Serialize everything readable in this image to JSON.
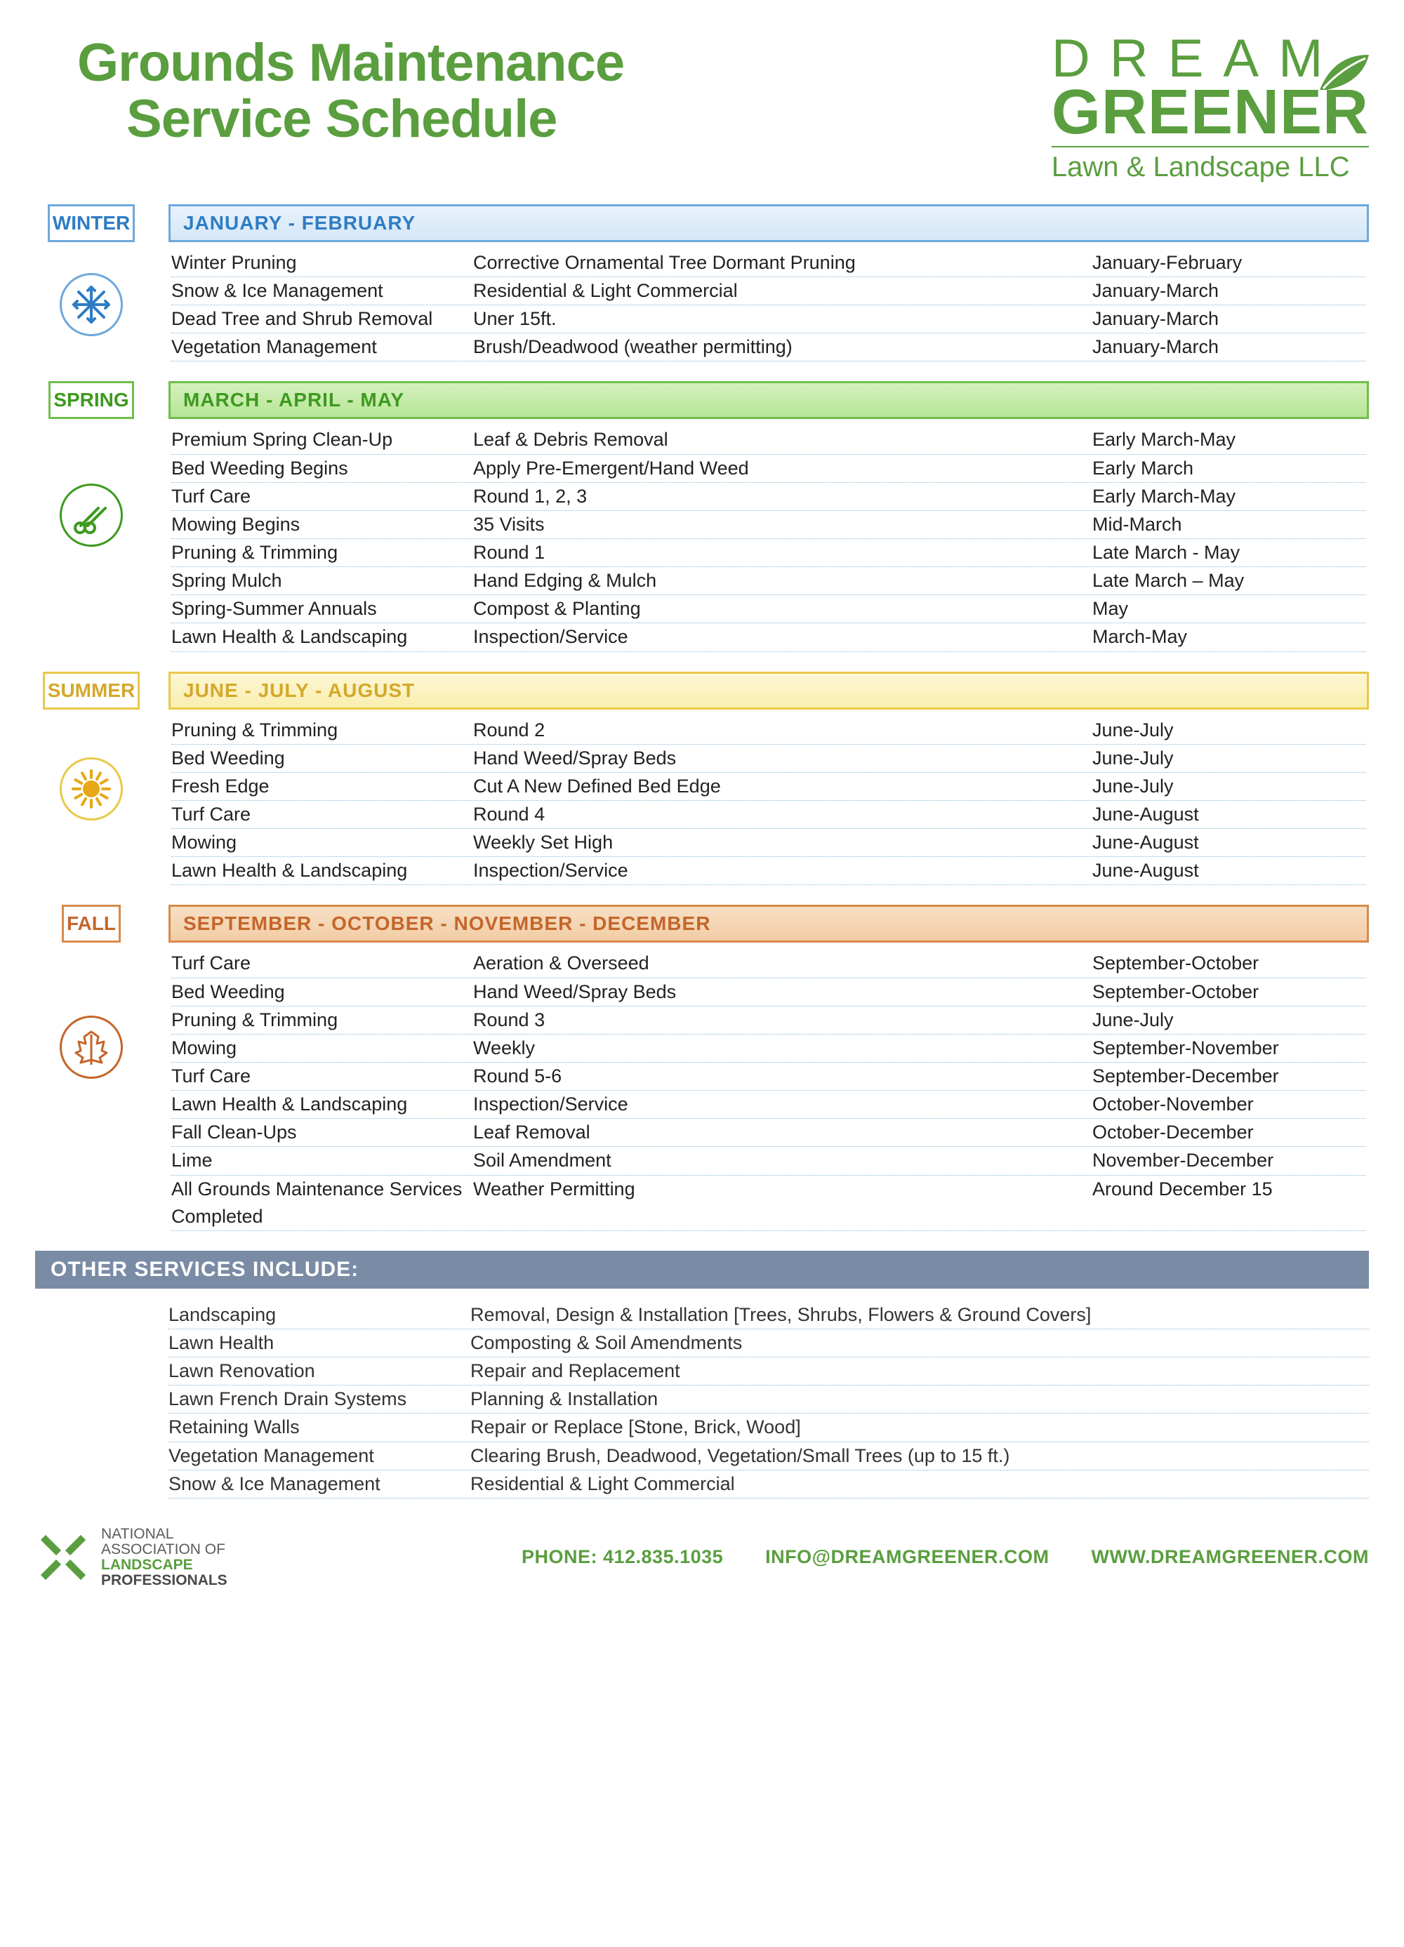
{
  "title_line1": "Grounds Maintenance",
  "title_line2": "Service Schedule",
  "logo": {
    "line1": "DREAM",
    "line2": "GREENER",
    "sub": "Lawn & Landscape LLC"
  },
  "colors": {
    "brand_green": "#5a9e3f",
    "winter": "#2e7cc4",
    "spring": "#3d9a1f",
    "summer": "#d4a82a",
    "fall": "#c4662a",
    "other_bar": "#7a8ba5",
    "row_rule": "#8fb8d6"
  },
  "seasons": [
    {
      "key": "winter",
      "label": "WINTER",
      "months": "JANUARY  -  FEBRUARY",
      "icon": "snowflake",
      "rows": [
        {
          "s": "Winter Pruning",
          "d": "Corrective Ornamental Tree Dormant Pruning",
          "t": "January-February"
        },
        {
          "s": "Snow & Ice Management",
          "d": "Residential & Light Commercial",
          "t": "January-March"
        },
        {
          "s": "Dead Tree and Shrub Removal",
          "d": "Uner 15ft.",
          "t": "January-March"
        },
        {
          "s": "Vegetation Management",
          "d": "Brush/Deadwood (weather permitting)",
          "t": "January-March"
        }
      ]
    },
    {
      "key": "spring",
      "label": "SPRING",
      "months": "MARCH  -  APRIL  -  MAY",
      "icon": "shears",
      "rows": [
        {
          "s": "Premium Spring Clean-Up",
          "d": "Leaf & Debris Removal",
          "t": "Early March-May"
        },
        {
          "s": "Bed Weeding Begins",
          "d": "Apply Pre-Emergent/Hand Weed",
          "t": "Early March"
        },
        {
          "s": "Turf Care",
          "d": "Round 1, 2, 3",
          "t": "Early March-May"
        },
        {
          "s": "Mowing Begins",
          "d": "35 Visits",
          "t": "Mid-March"
        },
        {
          "s": "Pruning & Trimming",
          "d": "Round 1",
          "t": "Late March - May"
        },
        {
          "s": "Spring Mulch",
          "d": "Hand Edging & Mulch",
          "t": "Late March – May"
        },
        {
          "s": "Spring-Summer Annuals",
          "d": "Compost & Planting",
          "t": "May"
        },
        {
          "s": "Lawn Health & Landscaping",
          "d": "Inspection/Service",
          "t": "March-May"
        }
      ]
    },
    {
      "key": "summer",
      "label": "SUMMER",
      "months": "JUNE  -  JULY  -  AUGUST",
      "icon": "sun",
      "rows": [
        {
          "s": "Pruning & Trimming",
          "d": "Round 2",
          "t": " June-July"
        },
        {
          "s": "Bed Weeding",
          "d": "Hand Weed/Spray Beds",
          "t": "June-July"
        },
        {
          "s": "Fresh Edge",
          "d": "Cut A New Defined Bed Edge",
          "t": "June-July"
        },
        {
          "s": "Turf Care",
          "d": "Round 4",
          "t": "June-August"
        },
        {
          "s": "Mowing",
          "d": "Weekly Set High",
          "t": "June-August"
        },
        {
          "s": "Lawn Health & Landscaping",
          "d": "Inspection/Service",
          "t": "June-August"
        }
      ]
    },
    {
      "key": "fall",
      "label": "FALL",
      "months": "SEPTEMBER  -  OCTOBER  -  NOVEMBER  -  DECEMBER",
      "icon": "leaf",
      "rows": [
        {
          "s": "Turf Care",
          "d": "Aeration & Overseed",
          "t": "September-October"
        },
        {
          "s": "Bed Weeding",
          "d": "Hand Weed/Spray Beds",
          "t": "September-October"
        },
        {
          "s": "Pruning & Trimming",
          "d": "Round 3",
          "t": "June-July"
        },
        {
          "s": "Mowing",
          "d": "Weekly",
          "t": "September-November"
        },
        {
          "s": "Turf Care",
          "d": "Round 5-6",
          "t": "September-December"
        },
        {
          "s": "Lawn Health & Landscaping",
          "d": "Inspection/Service",
          "t": "October-November"
        },
        {
          "s": "Fall Clean-Ups",
          "d": "Leaf Removal",
          "t": " October-December"
        },
        {
          "s": "Lime",
          "d": "Soil Amendment",
          "t": "November-December"
        },
        {
          "s": "All Grounds Maintenance Services Completed",
          "d": "Weather Permitting",
          "t": "Around December 15"
        }
      ]
    }
  ],
  "other": {
    "title": "OTHER SERVICES INCLUDE:",
    "rows": [
      {
        "s": "Landscaping",
        "d": "Removal, Design & Installation  [Trees, Shrubs, Flowers & Ground Covers]"
      },
      {
        "s": "Lawn Health",
        "d": "Composting & Soil Amendments"
      },
      {
        "s": "Lawn Renovation",
        "d": "Repair and Replacement"
      },
      {
        "s": "Lawn French Drain Systems",
        "d": "Planning & Installation"
      },
      {
        "s": "Retaining Walls",
        "d": "Repair or Replace [Stone, Brick, Wood]"
      },
      {
        "s": "Vegetation Management",
        "d": "Clearing Brush, Deadwood, Vegetation/Small Trees (up to 15 ft.)"
      },
      {
        "s": "Snow & Ice Management",
        "d": "Residential & Light Commercial"
      }
    ]
  },
  "footer": {
    "assoc1": "NATIONAL",
    "assoc2": "ASSOCIATION OF",
    "assoc3": "LANDSCAPE",
    "assoc4": "PROFESSIONALS",
    "phone": "PHONE: 412.835.1035",
    "email": "INFO@DREAMGREENER.COM",
    "web": "WWW.DREAMGREENER.COM"
  }
}
